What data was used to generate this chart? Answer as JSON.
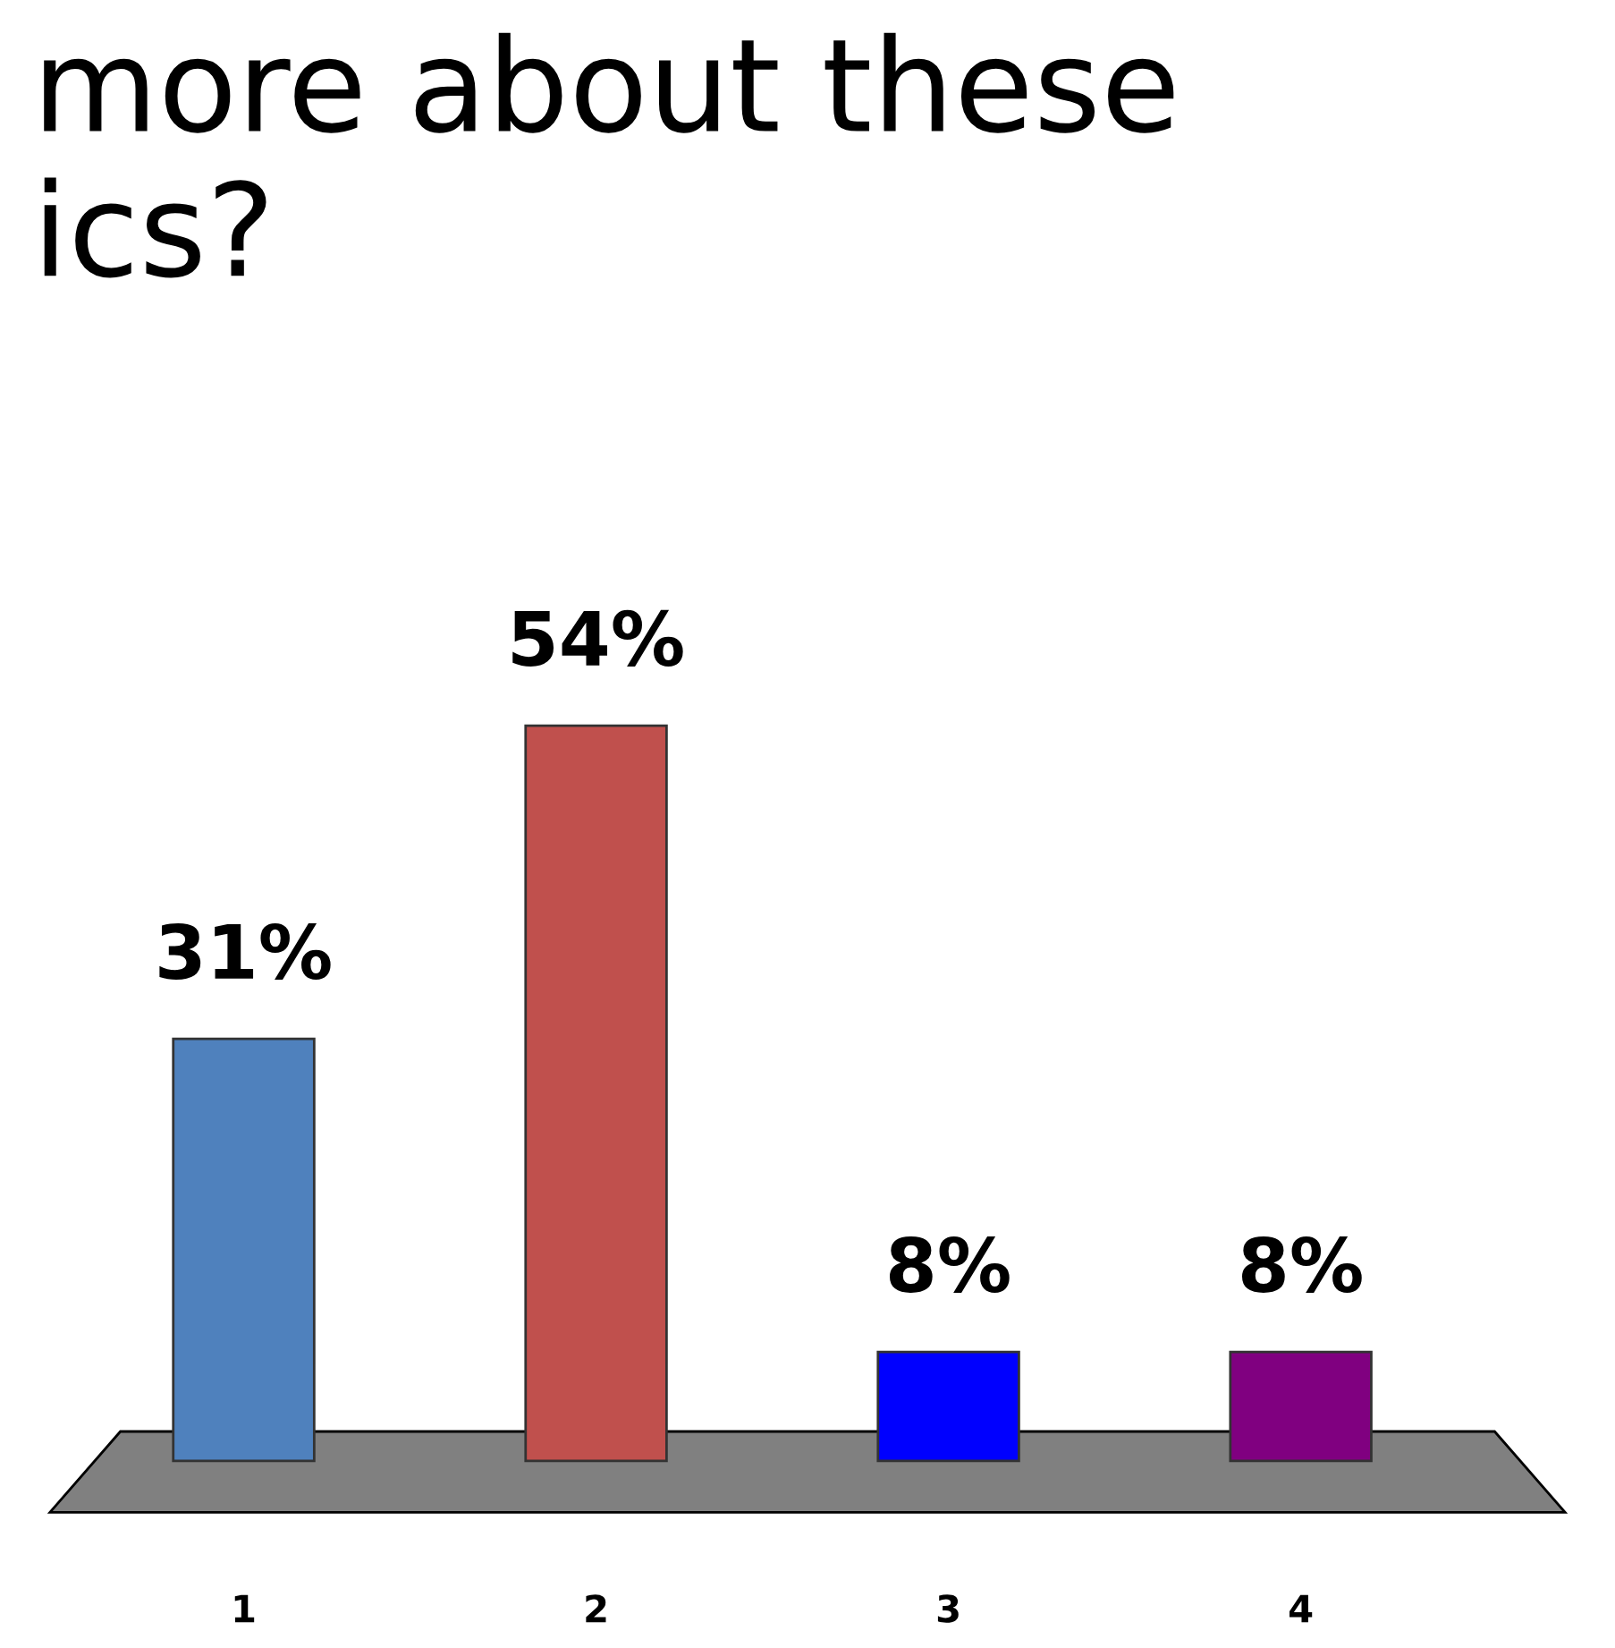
{
  "chart_data": {
    "type": "bar",
    "title": "more about these\nics?",
    "categories": [
      "1",
      "2",
      "3",
      "4"
    ],
    "values": [
      31,
      54,
      8,
      8
    ],
    "colors": [
      "#4f81bd",
      "#c0504d",
      "#0000ff",
      "#800080"
    ],
    "value_labels": [
      "31%",
      "54%",
      "8%",
      "8%"
    ],
    "grid": false,
    "legend": false
  }
}
